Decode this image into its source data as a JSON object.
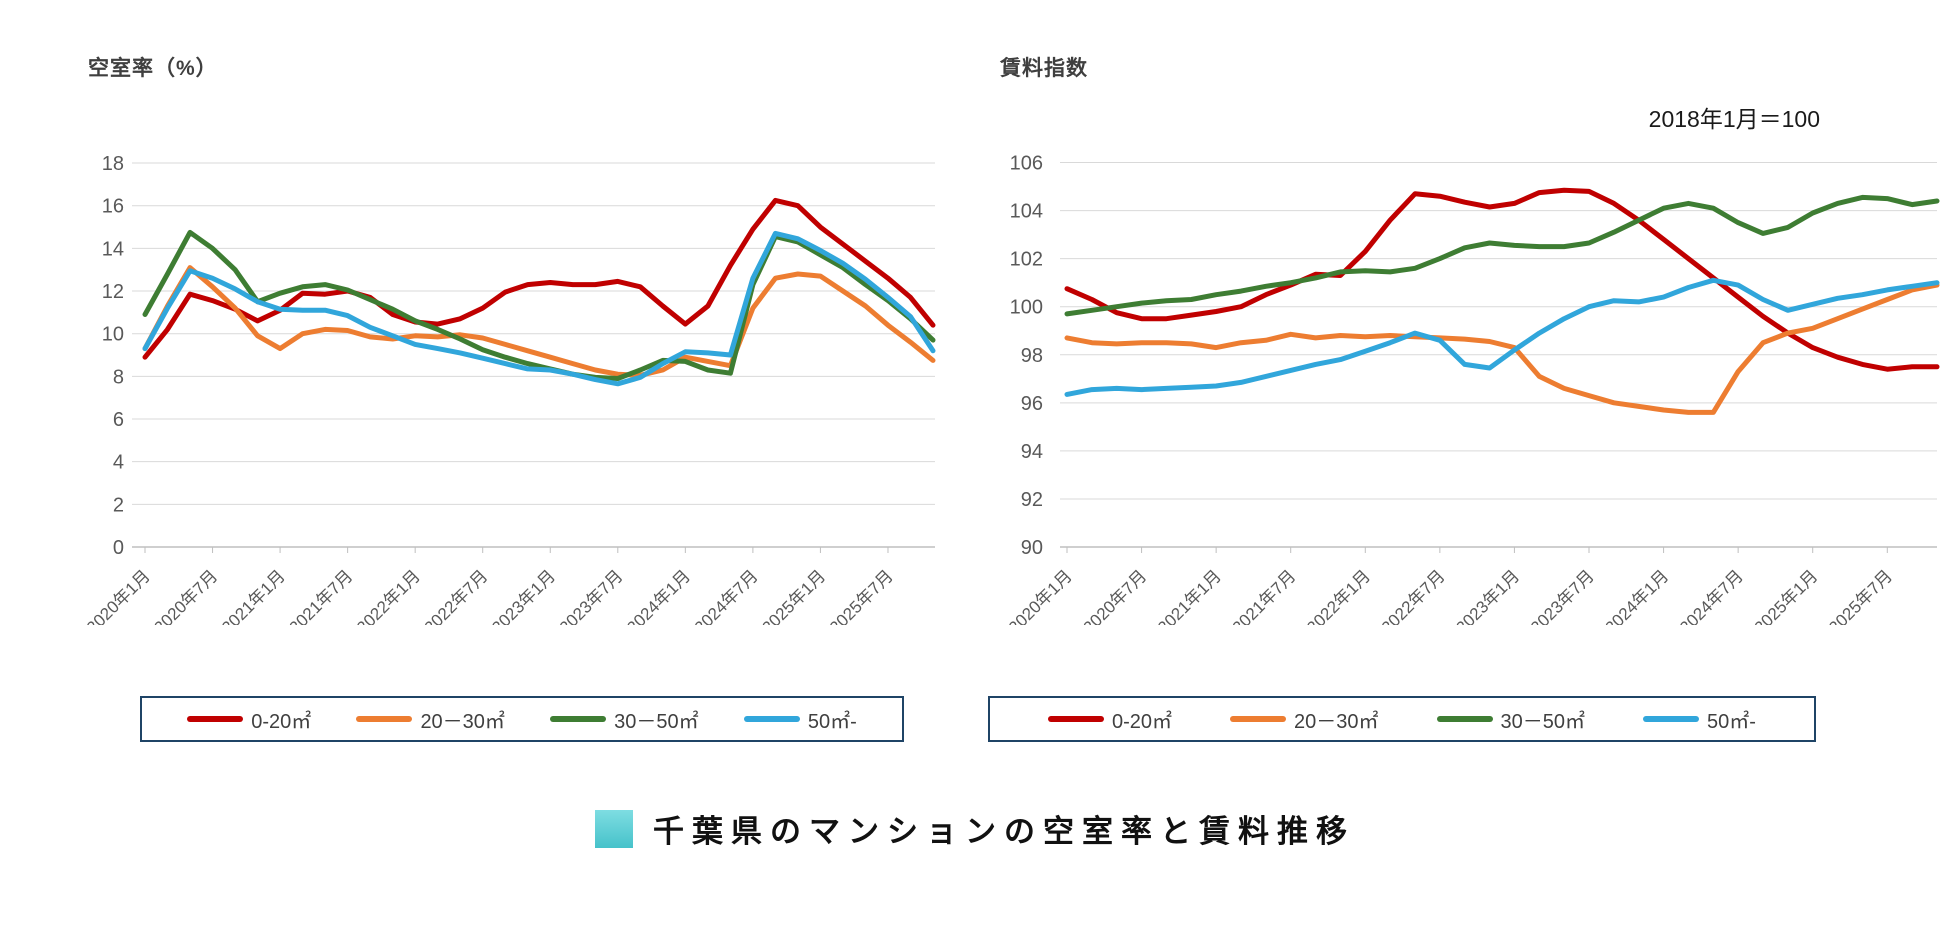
{
  "page": {
    "background": "#ffffff"
  },
  "footer": {
    "title": "千葉県のマンションの空室率と賃料推移",
    "accent_color": "#46c2ca"
  },
  "colors": {
    "red": "#C00000",
    "orange": "#ED7D31",
    "green": "#3E7D33",
    "blue": "#31A6DB",
    "grid": "#d9d9d9",
    "axis_text": "#595959",
    "legend_border": "#1F4466"
  },
  "chart_data": [
    {
      "type": "line",
      "title": "空室率（%）",
      "ylabel": "",
      "ylim": [
        0,
        18
      ],
      "ytick_step": 2,
      "grid": true,
      "legend_position": "bottom",
      "x_tick_labels": [
        "2020年1月",
        "2020年7月",
        "2021年1月",
        "2021年7月",
        "2022年1月",
        "2022年7月",
        "2023年1月",
        "2023年7月",
        "2024年1月",
        "2024年7月",
        "2025年1月",
        "2025年7月"
      ],
      "x_note": "points sampled every 2 months, 2020年1月〜2025年11月",
      "series": [
        {
          "name": "0-20㎡",
          "color": "#C00000",
          "values": [
            8.9,
            10.2,
            11.85,
            11.55,
            11.15,
            10.6,
            11.1,
            11.9,
            11.85,
            12.0,
            11.7,
            10.9,
            10.55,
            10.45,
            10.7,
            11.2,
            11.95,
            12.3,
            12.4,
            12.3,
            12.3,
            12.45,
            12.2,
            11.3,
            10.45,
            11.3,
            13.2,
            14.9,
            16.25,
            16.0,
            15.0,
            14.2,
            13.4,
            12.6,
            11.7,
            10.4
          ]
        },
        {
          "name": "20－30㎡",
          "color": "#ED7D31",
          "values": [
            9.3,
            11.3,
            13.1,
            12.2,
            11.2,
            9.9,
            9.3,
            10.0,
            10.2,
            10.15,
            9.85,
            9.75,
            9.9,
            9.85,
            9.95,
            9.8,
            9.5,
            9.2,
            8.9,
            8.6,
            8.3,
            8.1,
            8.05,
            8.3,
            8.9,
            8.7,
            8.5,
            11.2,
            12.6,
            12.8,
            12.7,
            12.0,
            11.3,
            10.4,
            9.6,
            8.75
          ]
        },
        {
          "name": "30－50㎡",
          "color": "#3E7D33",
          "values": [
            10.9,
            12.8,
            14.75,
            14.0,
            13.0,
            11.5,
            11.9,
            12.2,
            12.3,
            12.05,
            11.6,
            11.15,
            10.6,
            10.2,
            9.75,
            9.25,
            8.9,
            8.6,
            8.35,
            8.1,
            7.95,
            7.9,
            8.3,
            8.75,
            8.7,
            8.3,
            8.15,
            12.3,
            14.55,
            14.3,
            13.7,
            13.1,
            12.3,
            11.55,
            10.7,
            9.7
          ]
        },
        {
          "name": "50㎡-",
          "color": "#31A6DB",
          "values": [
            9.3,
            11.2,
            12.95,
            12.6,
            12.1,
            11.5,
            11.15,
            11.1,
            11.1,
            10.85,
            10.3,
            9.9,
            9.5,
            9.3,
            9.1,
            8.85,
            8.6,
            8.35,
            8.3,
            8.1,
            7.85,
            7.65,
            7.95,
            8.6,
            9.15,
            9.1,
            9.0,
            12.6,
            14.7,
            14.45,
            13.9,
            13.3,
            12.55,
            11.7,
            10.8,
            9.2
          ]
        }
      ]
    },
    {
      "type": "line",
      "title": "賃料指数",
      "annotation": "2018年1月＝100",
      "ylim": [
        90,
        106
      ],
      "ytick_step": 2,
      "grid": true,
      "legend_position": "bottom",
      "x_tick_labels": [
        "2020年1月",
        "2020年7月",
        "2021年1月",
        "2021年7月",
        "2022年1月",
        "2022年7月",
        "2023年1月",
        "2023年7月",
        "2024年1月",
        "2024年7月",
        "2025年1月",
        "2025年7月"
      ],
      "x_note": "points sampled every 2 months, 2020年1月〜2025年11月",
      "series": [
        {
          "name": "0-20㎡",
          "color": "#C00000",
          "values": [
            100.75,
            100.3,
            99.75,
            99.5,
            99.5,
            99.65,
            99.8,
            100.0,
            100.5,
            100.9,
            101.35,
            101.3,
            102.3,
            103.6,
            104.7,
            104.6,
            104.35,
            104.15,
            104.3,
            104.75,
            104.85,
            104.8,
            104.3,
            103.6,
            102.8,
            102.0,
            101.2,
            100.4,
            99.6,
            98.9,
            98.3,
            97.9,
            97.6,
            97.4,
            97.5,
            97.5
          ]
        },
        {
          "name": "20－30㎡",
          "color": "#ED7D31",
          "values": [
            98.7,
            98.5,
            98.45,
            98.5,
            98.5,
            98.45,
            98.3,
            98.5,
            98.6,
            98.85,
            98.7,
            98.8,
            98.75,
            98.8,
            98.75,
            98.7,
            98.65,
            98.55,
            98.3,
            97.1,
            96.6,
            96.3,
            96.0,
            95.85,
            95.7,
            95.6,
            95.6,
            97.3,
            98.5,
            98.9,
            99.1,
            99.5,
            99.9,
            100.3,
            100.7,
            100.9
          ]
        },
        {
          "name": "30－50㎡",
          "color": "#3E7D33",
          "values": [
            99.7,
            99.85,
            100.0,
            100.15,
            100.25,
            100.3,
            100.5,
            100.65,
            100.85,
            101.0,
            101.2,
            101.45,
            101.5,
            101.45,
            101.6,
            102.0,
            102.45,
            102.65,
            102.55,
            102.5,
            102.5,
            102.65,
            103.1,
            103.6,
            104.1,
            104.3,
            104.1,
            103.5,
            103.05,
            103.3,
            103.9,
            104.3,
            104.55,
            104.5,
            104.25,
            104.4
          ]
        },
        {
          "name": "50㎡-",
          "color": "#31A6DB",
          "values": [
            96.35,
            96.55,
            96.6,
            96.55,
            96.6,
            96.65,
            96.7,
            96.85,
            97.1,
            97.35,
            97.6,
            97.8,
            98.15,
            98.5,
            98.9,
            98.6,
            97.6,
            97.45,
            98.2,
            98.9,
            99.5,
            100.0,
            100.25,
            100.2,
            100.4,
            100.8,
            101.1,
            100.9,
            100.3,
            99.85,
            100.1,
            100.35,
            100.5,
            100.7,
            100.85,
            101.0
          ]
        }
      ]
    }
  ]
}
